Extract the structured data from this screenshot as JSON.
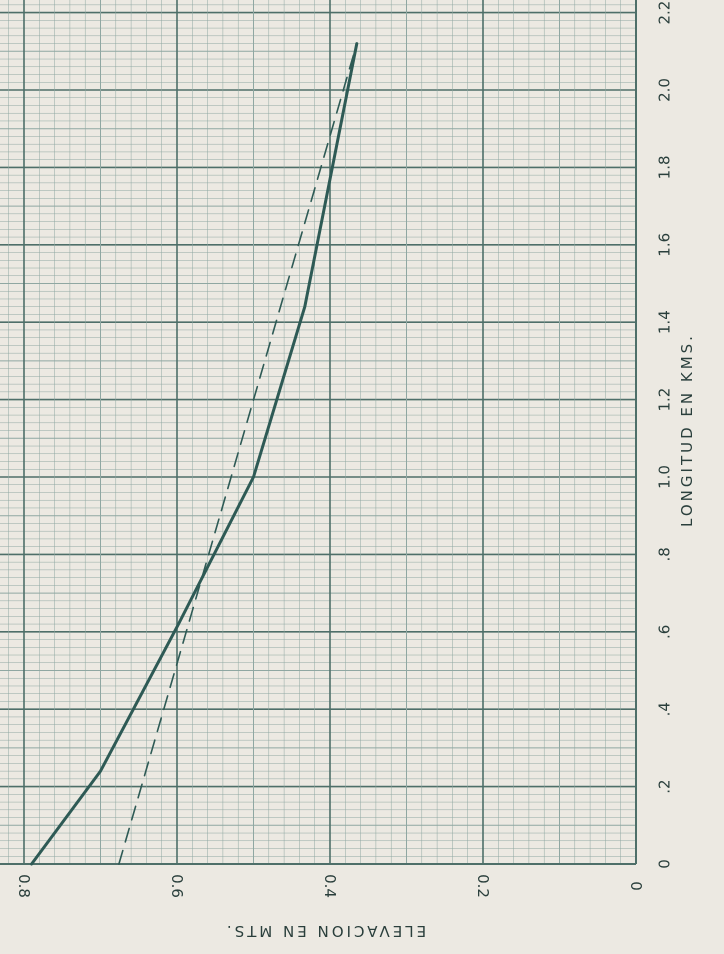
{
  "chart_data": {
    "type": "line",
    "orientation": "rotated-90",
    "x_axis": {
      "label": "LONGITUD   EN   KMS.",
      "range": [
        0,
        2.3
      ],
      "ticks": [
        {
          "value": 0,
          "label": "0"
        },
        {
          "value": 0.2,
          "label": ".2"
        },
        {
          "value": 0.4,
          "label": ".4"
        },
        {
          "value": 0.6,
          "label": ".6"
        },
        {
          "value": 0.8,
          "label": ".8"
        },
        {
          "value": 1.0,
          "label": "1.0"
        },
        {
          "value": 1.2,
          "label": "1.2"
        },
        {
          "value": 1.4,
          "label": "1.4"
        },
        {
          "value": 1.6,
          "label": "1.6"
        },
        {
          "value": 1.8,
          "label": "1.8"
        },
        {
          "value": 2.0,
          "label": "2.0"
        },
        {
          "value": 2.2,
          "label": "2.2"
        }
      ]
    },
    "y_axis": {
      "label": "ELEVACION   EN   MTS.",
      "range": [
        0,
        0.82
      ],
      "ticks": [
        {
          "value": 0,
          "label": "0"
        },
        {
          "value": 0.2,
          "label": "0.2"
        },
        {
          "value": 0.4,
          "label": "0.4"
        },
        {
          "value": 0.6,
          "label": "0.6"
        },
        {
          "value": 0.8,
          "label": "0.8"
        }
      ]
    },
    "grid": true,
    "series": [
      {
        "style": "solid",
        "color": "#2e5a55",
        "points": [
          [
            0,
            0.79
          ],
          [
            0.24,
            0.7
          ],
          [
            0.62,
            0.598
          ],
          [
            1.0,
            0.5
          ],
          [
            1.44,
            0.433
          ],
          [
            2.12,
            0.365
          ]
        ]
      },
      {
        "style": "dashed",
        "color": "#2e5a55",
        "points": [
          [
            0,
            0.676
          ],
          [
            2.12,
            0.365
          ]
        ]
      }
    ],
    "colors": {
      "paper": "#ece9e2",
      "grid_minor": "#8fa7a2",
      "grid_major": "#4e6f69",
      "ink": "#2a3f3c"
    }
  }
}
